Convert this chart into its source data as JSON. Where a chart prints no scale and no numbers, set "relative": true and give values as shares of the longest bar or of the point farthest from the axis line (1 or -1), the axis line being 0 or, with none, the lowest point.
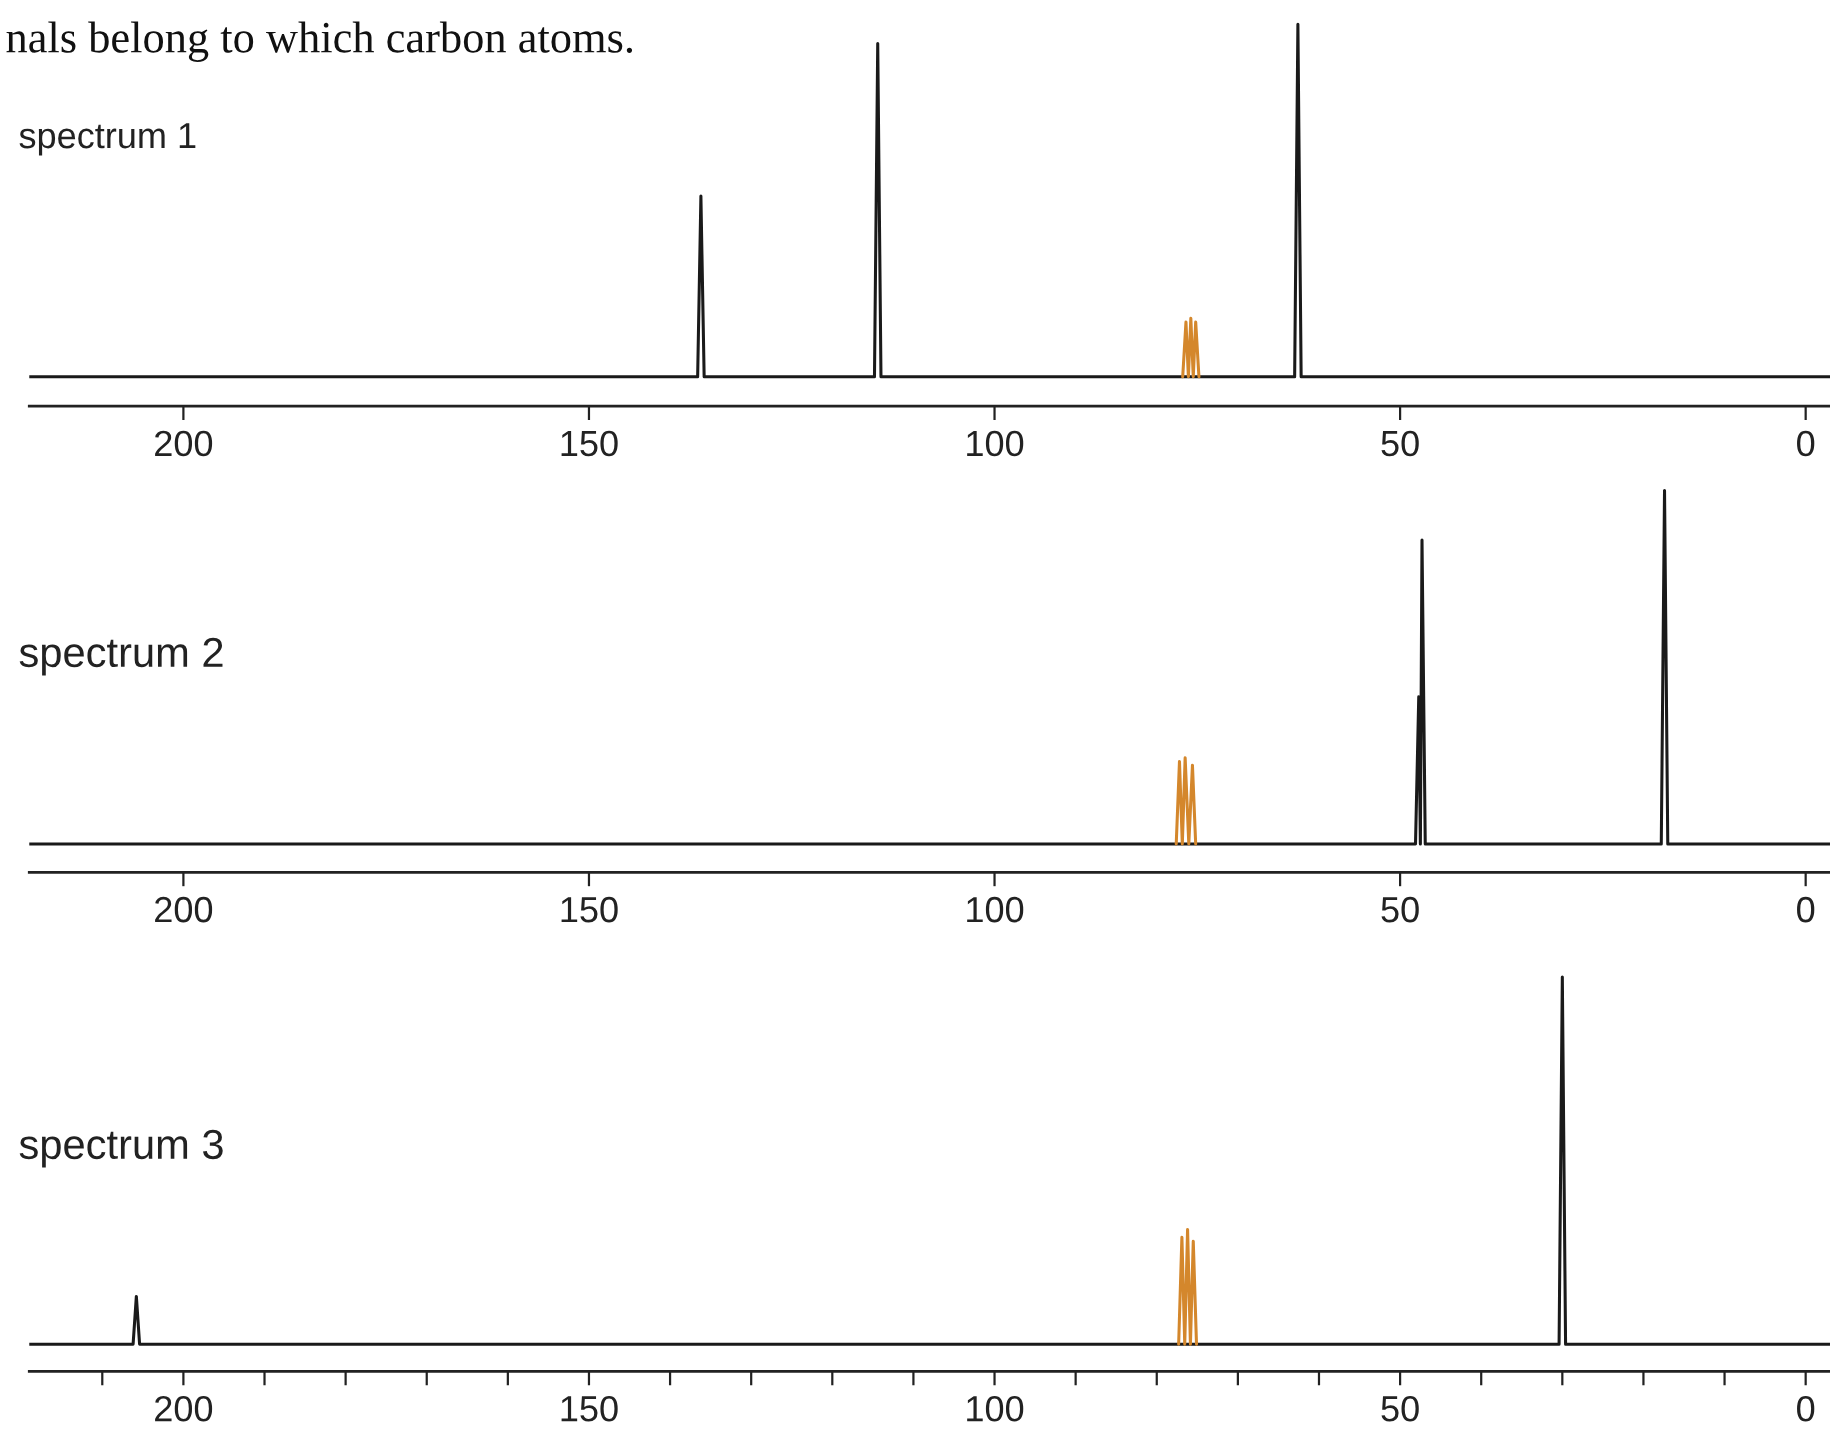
{
  "chart_data": [
    {
      "type": "line",
      "title": "nals belong to which carbon atoms.",
      "annotations": [
        "spectrum 1"
      ],
      "relative": true,
      "xlim": [
        219,
        -3
      ],
      "xticks": [
        200,
        150,
        100,
        50,
        0
      ],
      "tick_labels": "x",
      "grid": false,
      "series": [
        {
          "color": "#1a1a1a",
          "x": [
            219,
            136.6,
            136.2,
            135.8,
            114.8,
            114.4,
            114.0,
            63.0,
            62.6,
            62.2,
            -3
          ],
          "values": [
            0.077,
            0.077,
            0.55,
            0.077,
            0.077,
            0.95,
            0.077,
            0.077,
            1.0,
            0.077,
            0.077
          ]
        },
        {
          "color": "#d4872c",
          "x": [
            76.8,
            76.4,
            76.1,
            75.8,
            75.5,
            75.2,
            74.8
          ],
          "values": [
            0.077,
            0.22,
            0.077,
            0.23,
            0.077,
            0.22,
            0.077
          ]
        }
      ]
    },
    {
      "type": "line",
      "annotations": [
        "spectrum 2"
      ],
      "relative": true,
      "xlim": [
        219,
        -3
      ],
      "xticks": [
        200,
        150,
        100,
        50,
        0
      ],
      "tick_labels": "x",
      "grid": false,
      "series": [
        {
          "color": "#1a1a1a",
          "x": [
            219,
            48.1,
            47.7,
            47.5,
            47.3,
            46.9,
            17.8,
            17.4,
            17.0,
            -3
          ],
          "values": [
            0.074,
            0.074,
            0.46,
            0.074,
            0.87,
            0.074,
            0.074,
            1.0,
            0.074,
            0.074
          ]
        },
        {
          "color": "#d4872c",
          "x": [
            77.6,
            77.2,
            76.85,
            76.5,
            76.05,
            75.6,
            75.2
          ],
          "values": [
            0.074,
            0.29,
            0.074,
            0.3,
            0.074,
            0.28,
            0.074
          ]
        }
      ]
    },
    {
      "type": "line",
      "annotations": [
        "spectrum 3"
      ],
      "relative": true,
      "xlim": [
        219,
        -3
      ],
      "tick_labels": "x",
      "grid": false,
      "xticks": [
        {
          "value": 210,
          "label": null
        },
        200,
        {
          "value": 190,
          "label": null
        },
        {
          "value": 180,
          "label": null
        },
        {
          "value": 170,
          "label": null
        },
        {
          "value": 160,
          "label": null
        },
        150,
        {
          "value": 140,
          "label": null
        },
        {
          "value": 130,
          "label": null
        },
        {
          "value": 120,
          "label": null
        },
        {
          "value": 110,
          "label": null
        },
        100,
        {
          "value": 90,
          "label": null
        },
        {
          "value": 80,
          "label": null
        },
        {
          "value": 70,
          "label": null
        },
        {
          "value": 60,
          "label": null
        },
        50,
        {
          "value": 40,
          "label": null
        },
        {
          "value": 30,
          "label": null
        },
        {
          "value": 20,
          "label": null
        },
        {
          "value": 10,
          "label": null
        },
        0
      ],
      "series": [
        {
          "color": "#1a1a1a",
          "x": [
            219,
            206.2,
            205.8,
            205.4,
            30.4,
            30.0,
            29.6,
            -3
          ],
          "values": [
            0.069,
            0.069,
            0.19,
            0.069,
            0.069,
            1.0,
            0.069,
            0.069
          ]
        },
        {
          "color": "#d4872c",
          "x": [
            77.3,
            76.9,
            76.55,
            76.2,
            75.85,
            75.5,
            75.1
          ],
          "values": [
            0.069,
            0.34,
            0.069,
            0.36,
            0.069,
            0.33,
            0.069
          ]
        }
      ]
    }
  ]
}
